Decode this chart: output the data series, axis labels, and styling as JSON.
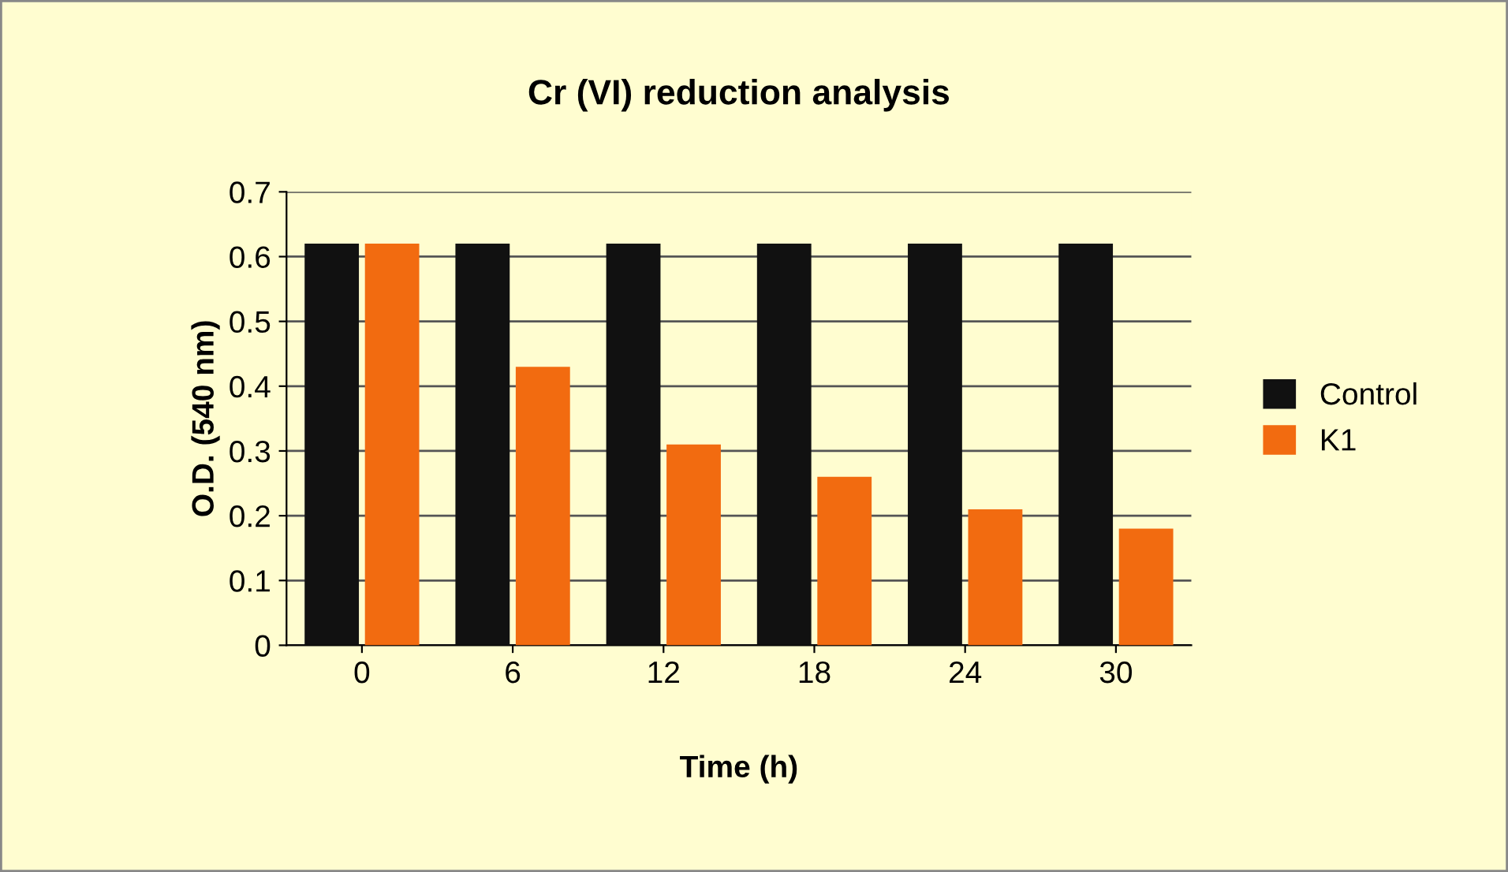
{
  "chart_data": {
    "type": "bar",
    "title": "Cr (VI) reduction analysis",
    "xlabel": "Time (h)",
    "ylabel": "O.D. (540 nm)",
    "categories": [
      "0",
      "6",
      "12",
      "18",
      "24",
      "30"
    ],
    "series": [
      {
        "name": "Control",
        "color": "#111111",
        "values": [
          0.62,
          0.62,
          0.62,
          0.62,
          0.62,
          0.62
        ]
      },
      {
        "name": "K1",
        "color": "#f26b10",
        "values": [
          0.62,
          0.43,
          0.31,
          0.26,
          0.21,
          0.18
        ]
      }
    ],
    "ylim": [
      0,
      0.7
    ],
    "yticks": [
      0,
      0.1,
      0.2,
      0.3,
      0.4,
      0.5,
      0.6,
      0.7
    ],
    "grid": "y",
    "legend": "right"
  }
}
